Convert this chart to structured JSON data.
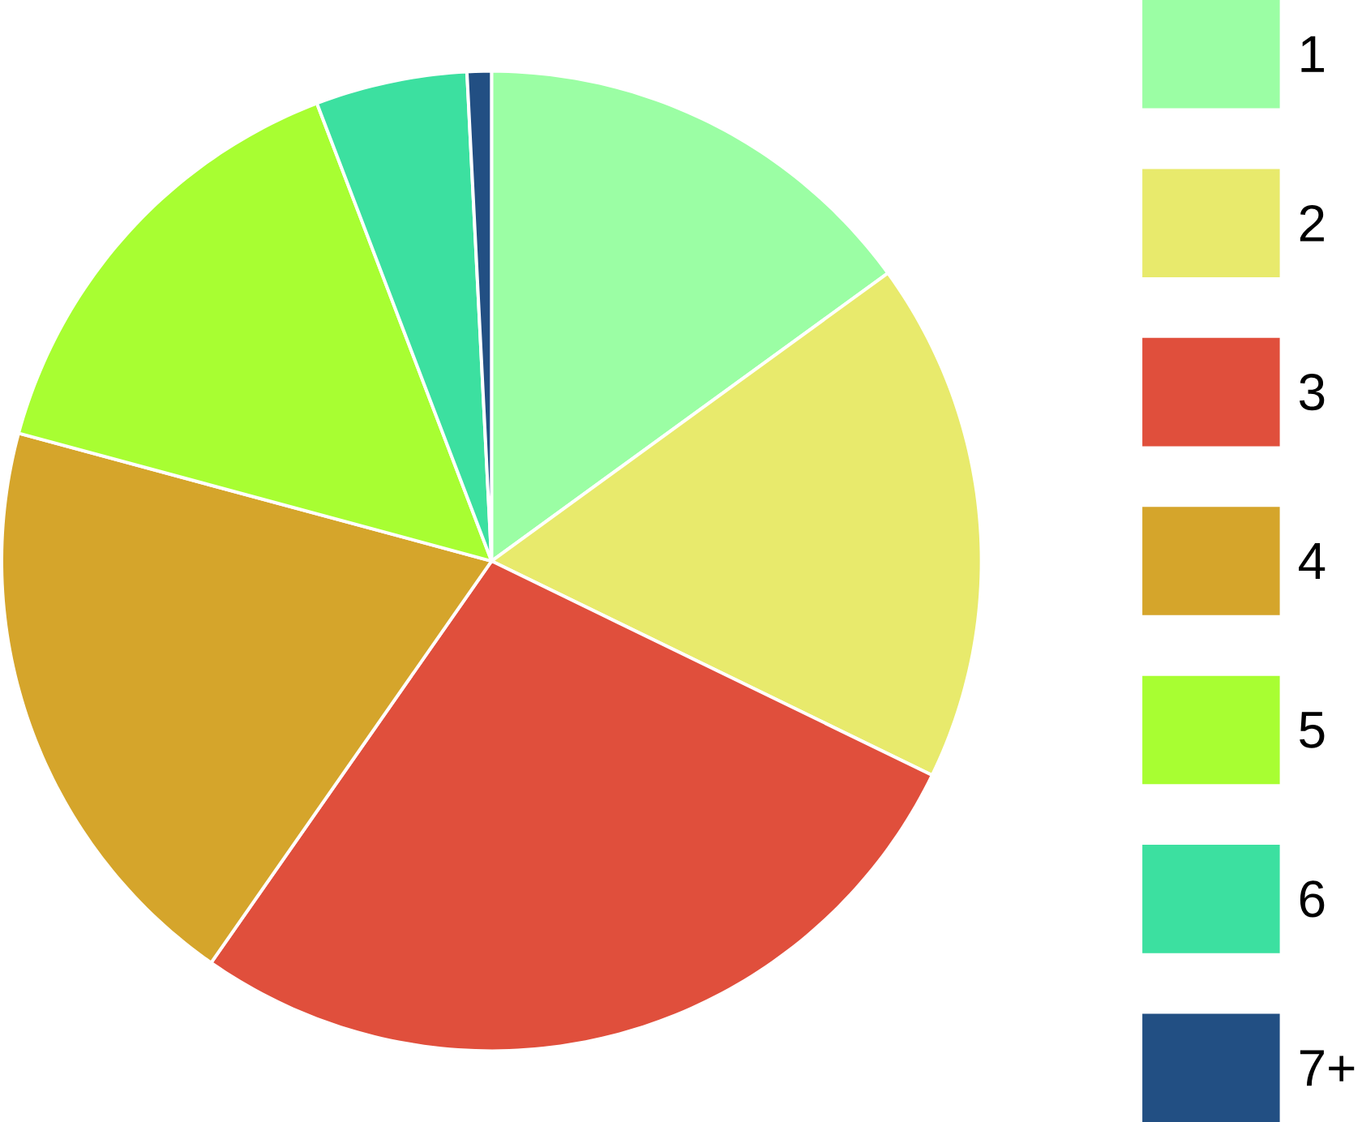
{
  "chart_data": {
    "type": "pie",
    "categories": [
      "1",
      "2",
      "3",
      "4",
      "5",
      "6",
      "7+"
    ],
    "values": [
      15,
      17.2,
      27.5,
      19.5,
      15,
      5,
      0.8
    ],
    "colors": [
      "#9bfea4",
      "#e8ea6c",
      "#e04f3c",
      "#d5a52b",
      "#a8fe32",
      "#3ce0a0",
      "#224f83"
    ],
    "legend": "right"
  }
}
